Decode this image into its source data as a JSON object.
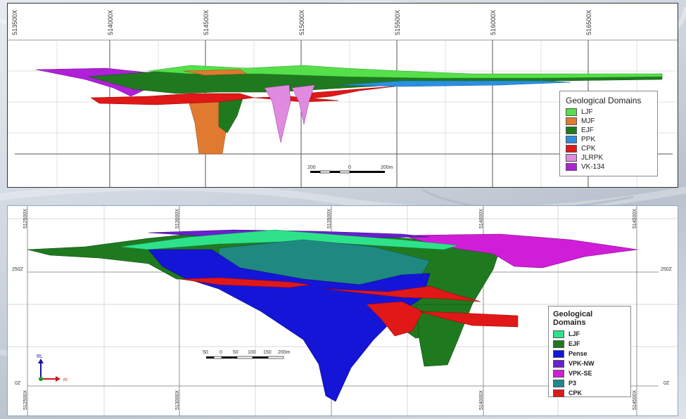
{
  "top_section": {
    "easting_labels": [
      "513500X",
      "514000X",
      "514500X",
      "515000X",
      "515500X",
      "516000X",
      "516500X"
    ],
    "legend": {
      "title": "Geological Domains",
      "items": [
        {
          "label": "LJF",
          "color": "#55e04a"
        },
        {
          "label": "MJF",
          "color": "#e07a30"
        },
        {
          "label": "EJF",
          "color": "#1f7a1f"
        },
        {
          "label": "PPK",
          "color": "#2a8fe0"
        },
        {
          "label": "CPK",
          "color": "#e01818"
        },
        {
          "label": "JLRPK",
          "color": "#e08ae0"
        },
        {
          "label": "VK-134",
          "color": "#b020d8"
        }
      ]
    },
    "scale_bar": {
      "labels": [
        "200",
        "0",
        "200m"
      ]
    }
  },
  "bottom_section": {
    "easting_labels": [
      "512500X",
      "513000X",
      "513500X",
      "514000X",
      "514500X"
    ],
    "elevation_labels": [
      "250Z",
      "0Z"
    ],
    "legend": {
      "title": "Geological Domains",
      "items": [
        {
          "label": "LJF",
          "color": "#2ee28a"
        },
        {
          "label": "EJF",
          "color": "#1f7a1f"
        },
        {
          "label": "Pense",
          "color": "#1515d8"
        },
        {
          "label": "VPK-NW",
          "color": "#6a1fd0"
        },
        {
          "label": "VPK-SE",
          "color": "#d01ed8"
        },
        {
          "label": "P3",
          "color": "#1f8a8a"
        },
        {
          "label": "CPK",
          "color": "#e01818"
        }
      ]
    },
    "scale_bar": {
      "labels": [
        "50",
        "0",
        "50",
        "100",
        "150",
        "200m"
      ]
    },
    "orientation": {
      "vertical_label": "RL",
      "horizontal_label": "m"
    }
  }
}
